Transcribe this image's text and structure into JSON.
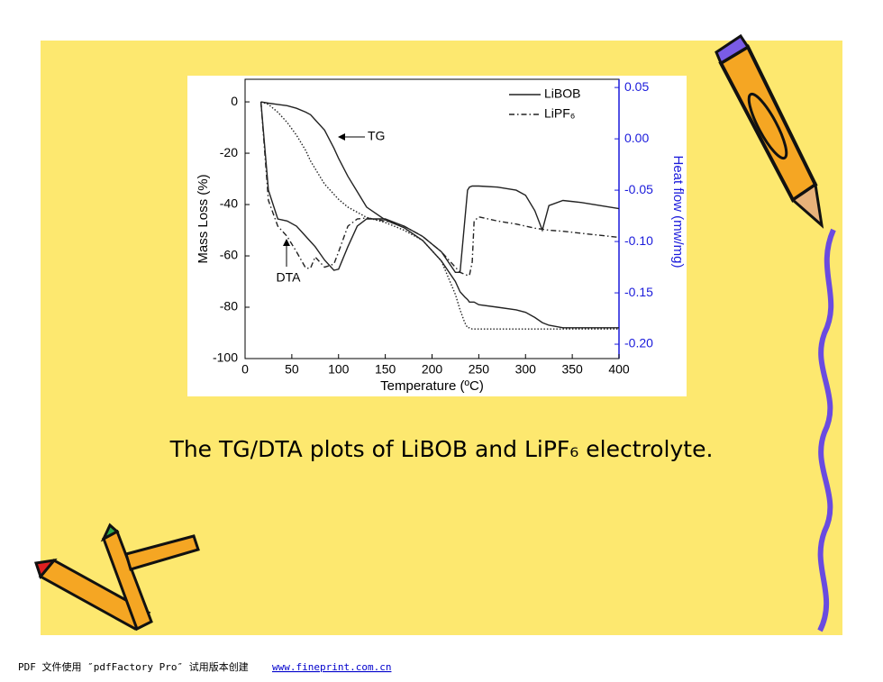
{
  "chart_data": {
    "type": "line",
    "x_label": "Temperature (ºC)",
    "y_label": "Mass Loss (%)",
    "y2_label": "Heat flow (mw/mg)",
    "caption": "The TG/DTA plots of LiBOB and LiPF₆ electrolyte.",
    "annotations": [
      "TG",
      "DTA"
    ],
    "xlim": [
      0,
      400
    ],
    "xticks": [
      0,
      50,
      100,
      150,
      200,
      250,
      300,
      350,
      400
    ],
    "ylim": [
      -100,
      8.8
    ],
    "yticks": [
      0,
      -20,
      -40,
      -60,
      -80,
      -100
    ],
    "y2lim": [
      -0.214,
      0.058
    ],
    "y2ticks": [
      0.05,
      {
        "value": 0,
        "label": "0.00"
      },
      -0.05,
      {
        "value": -0.1,
        "label": "-0.10"
      },
      -0.15,
      {
        "value": -0.2,
        "label": "-0.20"
      }
    ],
    "y2_color": "#1a1adb",
    "x": [
      17,
      25,
      35,
      45,
      55,
      65,
      70,
      75,
      85,
      95,
      100,
      110,
      120,
      130,
      150,
      170,
      190,
      210,
      225,
      230,
      235,
      238,
      240,
      243,
      245,
      250,
      270,
      290,
      300,
      310,
      318,
      325,
      340,
      360,
      380,
      400
    ],
    "series": [
      {
        "name": "LiBOB",
        "axis": "y",
        "dash": "solid",
        "color": "#222222",
        "values": [
          0,
          -0.5,
          -1,
          -1.5,
          -2.5,
          -4,
          -5,
          -7,
          -11,
          -18,
          -22,
          -29,
          -35,
          -41,
          -46,
          -49,
          -54,
          -62,
          -70,
          -74,
          -76,
          -77,
          -78,
          -78,
          -78,
          -79,
          -80,
          -81,
          -82,
          -84,
          -86,
          -87,
          -88,
          -88,
          -88,
          -88
        ]
      },
      {
        "name": "LiPF₆",
        "axis": "y",
        "dash": "dot",
        "color": "#222222",
        "values": [
          0,
          -1,
          -4,
          -8,
          -13,
          -19,
          -23,
          -26,
          -32,
          -36,
          -38,
          -41,
          -43,
          -45,
          -47,
          -50,
          -54,
          -62,
          -75,
          -81,
          -86,
          -88,
          -88,
          -88.5,
          -88.5,
          -88.5,
          -88.5,
          -88.5,
          -88.5,
          -88.5,
          -88.5,
          -88.5,
          -88.5,
          -88.5,
          -88.5,
          -88.5
        ]
      },
      {
        "name": "LiBOB",
        "axis": "y2",
        "dash": "solid",
        "color": "#222222",
        "values": [
          0.036,
          -0.05,
          -0.078,
          -0.08,
          -0.085,
          -0.095,
          -0.1,
          -0.105,
          -0.118,
          -0.128,
          -0.127,
          -0.105,
          -0.085,
          -0.078,
          -0.078,
          -0.085,
          -0.095,
          -0.11,
          -0.13,
          -0.13,
          -0.08,
          -0.05,
          -0.047,
          -0.046,
          -0.046,
          -0.046,
          -0.047,
          -0.05,
          -0.055,
          -0.07,
          -0.089,
          -0.065,
          -0.06,
          -0.062,
          -0.065,
          -0.068
        ]
      },
      {
        "name": "LiPF₆",
        "axis": "y2",
        "dash": "dashdot",
        "color": "#222222",
        "values": [
          0.036,
          -0.06,
          -0.085,
          -0.095,
          -0.11,
          -0.126,
          -0.126,
          -0.115,
          -0.125,
          -0.122,
          -0.11,
          -0.085,
          -0.078,
          -0.077,
          -0.08,
          -0.085,
          -0.095,
          -0.11,
          -0.125,
          -0.13,
          -0.132,
          -0.133,
          -0.133,
          -0.12,
          -0.08,
          -0.076,
          -0.08,
          -0.083,
          -0.085,
          -0.087,
          -0.088,
          -0.089,
          -0.09,
          -0.092,
          -0.094,
          -0.096
        ]
      }
    ]
  },
  "footer": {
    "text": "PDF 文件使用 ″pdfFactory Pro″ 试用版本创建 ",
    "link": "www.fineprint.com.cn"
  }
}
